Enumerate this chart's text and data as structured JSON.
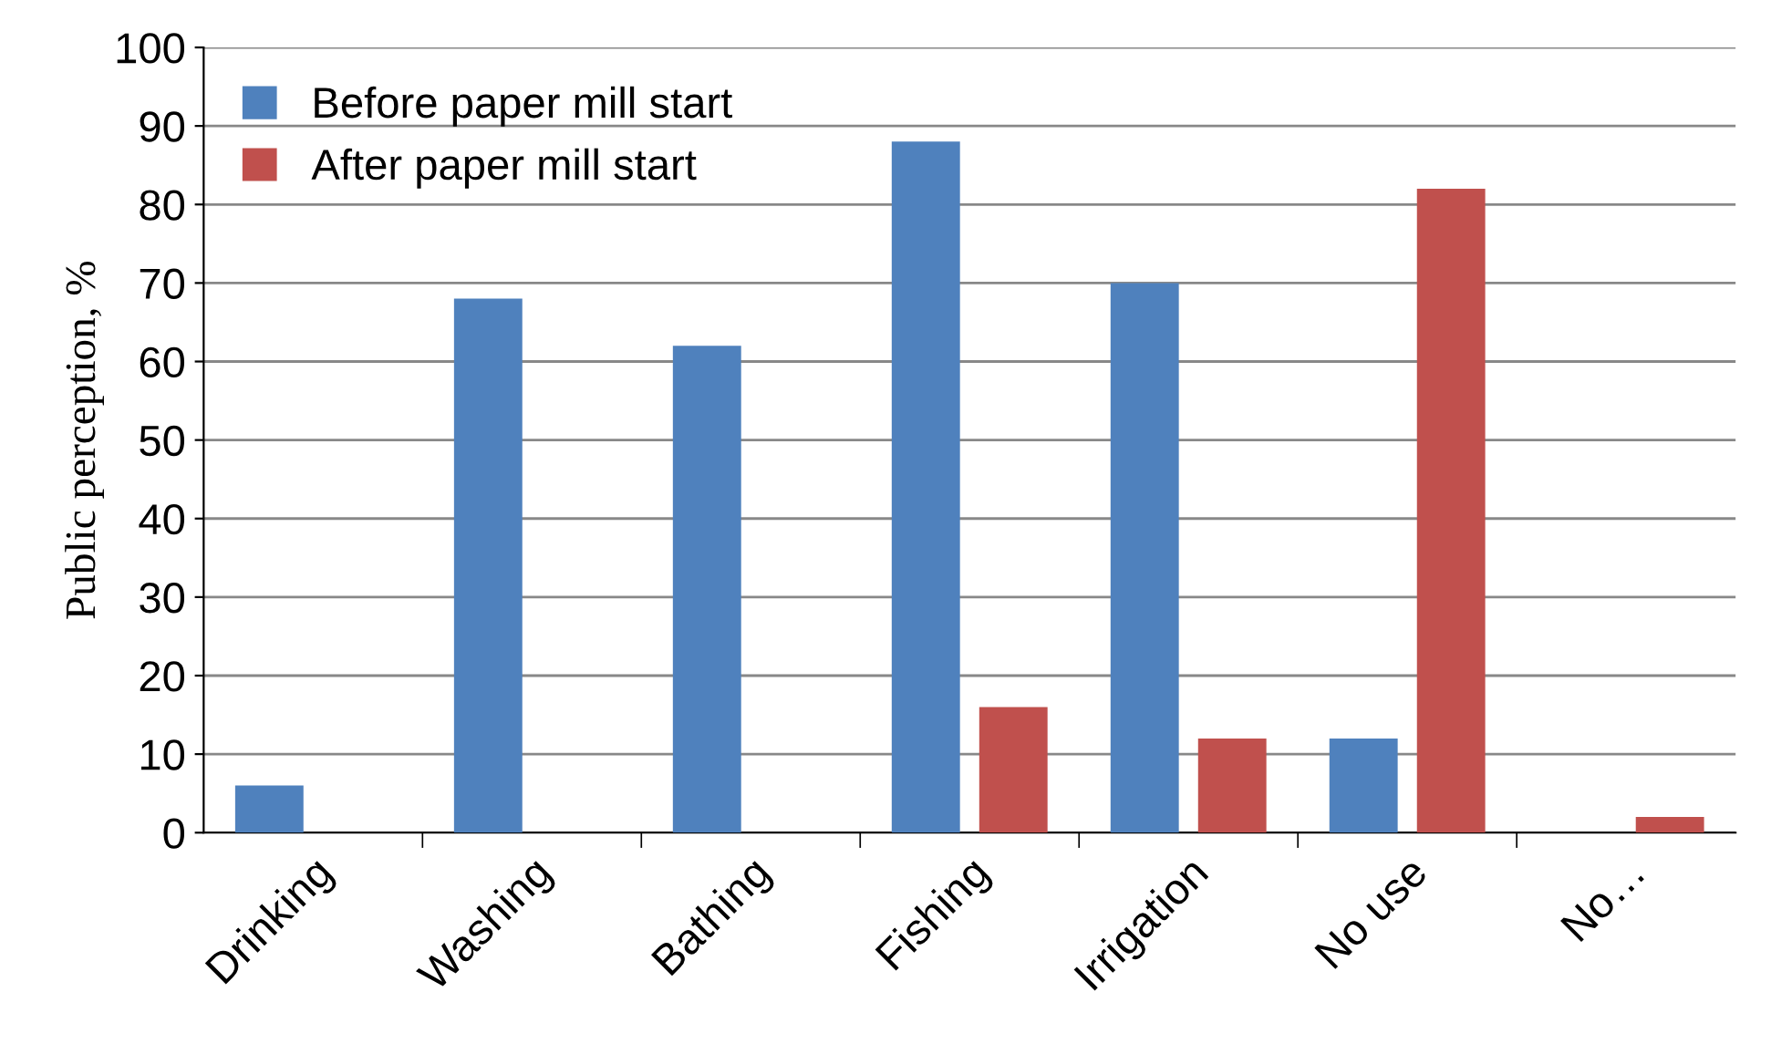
{
  "chart_data": {
    "type": "bar",
    "ylabel": "Public perception, %",
    "categories": [
      "Drinking",
      "Washing",
      "Bathing",
      "Fishing",
      "Irrigation",
      "No use",
      "No…"
    ],
    "series": [
      {
        "name": "Before paper mill start",
        "color": "#4f81bd",
        "values": [
          6,
          68,
          62,
          88,
          70,
          12,
          0
        ]
      },
      {
        "name": "After paper mill start",
        "color": "#c0504d",
        "values": [
          0,
          0,
          0,
          16,
          12,
          82,
          2
        ]
      }
    ],
    "ylim": [
      0,
      100
    ],
    "yticks": [
      0,
      10,
      20,
      30,
      40,
      50,
      60,
      70,
      80,
      90,
      100
    ],
    "grid": "y",
    "legend": "top left"
  }
}
